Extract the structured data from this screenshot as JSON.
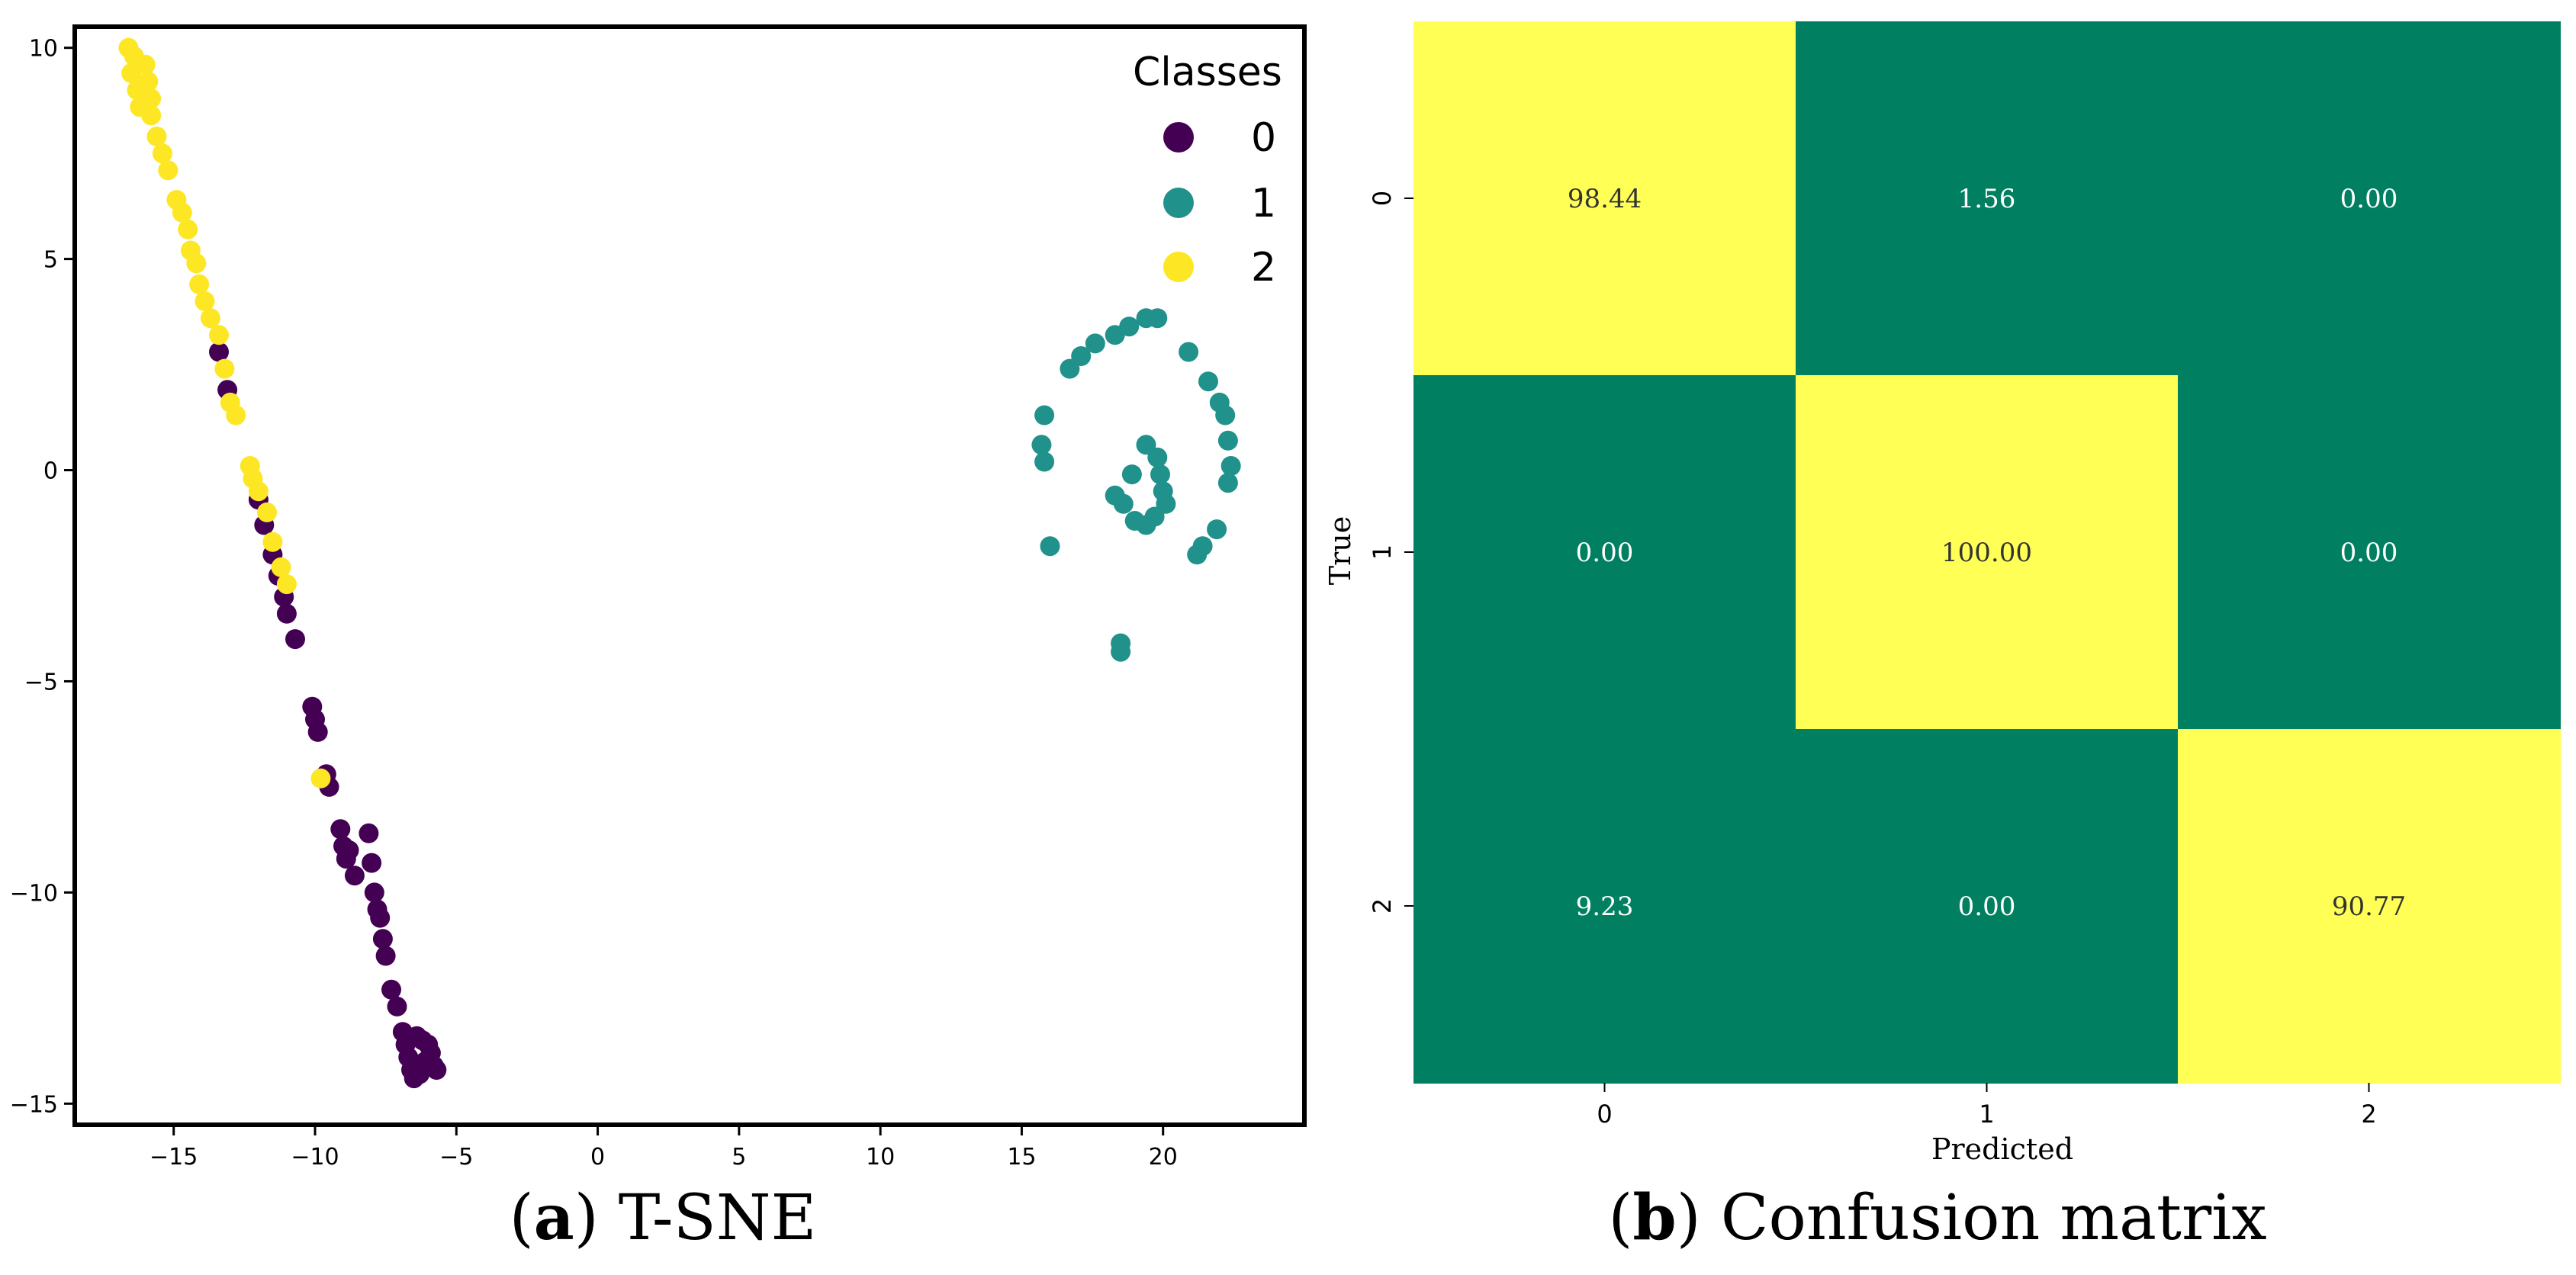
{
  "colors": {
    "class0": "#440154",
    "class1": "#21918c",
    "class2": "#fde725",
    "cm_high": "#ffff55",
    "cm_low": "#008060",
    "cm_text_on_high": "#333333",
    "cm_text_on_low": "#ffffff"
  },
  "captions": {
    "a": {
      "letter": "a",
      "text": " T-SNE"
    },
    "b": {
      "letter": "b",
      "text": " Confusion matrix"
    }
  },
  "chart_data": [
    {
      "type": "scatter",
      "title": "T-SNE",
      "xlim": [
        -18.5,
        25
      ],
      "ylim": [
        -15.5,
        10.5
      ],
      "xticks": [
        -15,
        -10,
        -5,
        0,
        5,
        10,
        15,
        20
      ],
      "yticks": [
        10,
        5,
        0,
        -5,
        -10,
        -15
      ],
      "legend": {
        "title": "Classes",
        "position": "top-right",
        "entries": [
          "0",
          "1",
          "2"
        ]
      },
      "series": [
        {
          "name": "0",
          "points": [
            [
              -13.4,
              2.8
            ],
            [
              -13.1,
              1.9
            ],
            [
              -12.0,
              -0.7
            ],
            [
              -11.8,
              -1.3
            ],
            [
              -11.5,
              -2.0
            ],
            [
              -11.3,
              -2.5
            ],
            [
              -11.1,
              -3.0
            ],
            [
              -11.0,
              -3.4
            ],
            [
              -10.7,
              -4.0
            ],
            [
              -10.1,
              -5.6
            ],
            [
              -10.0,
              -5.9
            ],
            [
              -9.9,
              -6.2
            ],
            [
              -9.6,
              -7.2
            ],
            [
              -9.5,
              -7.5
            ],
            [
              -9.1,
              -8.5
            ],
            [
              -9.0,
              -8.9
            ],
            [
              -8.9,
              -9.2
            ],
            [
              -8.8,
              -9.0
            ],
            [
              -8.6,
              -9.6
            ],
            [
              -8.1,
              -8.6
            ],
            [
              -8.0,
              -9.3
            ],
            [
              -7.9,
              -10.0
            ],
            [
              -7.8,
              -10.4
            ],
            [
              -7.7,
              -10.6
            ],
            [
              -7.6,
              -11.1
            ],
            [
              -7.5,
              -11.5
            ],
            [
              -7.3,
              -12.3
            ],
            [
              -7.1,
              -12.7
            ],
            [
              -6.9,
              -13.3
            ],
            [
              -6.8,
              -13.6
            ],
            [
              -6.7,
              -13.9
            ],
            [
              -6.6,
              -14.2
            ],
            [
              -6.5,
              -14.4
            ],
            [
              -6.3,
              -14.3
            ],
            [
              -6.1,
              -14.0
            ],
            [
              -6.0,
              -13.6
            ],
            [
              -5.9,
              -13.8
            ],
            [
              -5.8,
              -14.1
            ],
            [
              -5.7,
              -14.2
            ],
            [
              -6.4,
              -13.4
            ],
            [
              -6.2,
              -13.5
            ]
          ]
        },
        {
          "name": "1",
          "points": [
            [
              15.8,
              1.3
            ],
            [
              15.7,
              0.6
            ],
            [
              15.8,
              0.2
            ],
            [
              16.0,
              -1.8
            ],
            [
              16.7,
              2.4
            ],
            [
              17.1,
              2.7
            ],
            [
              17.6,
              3.0
            ],
            [
              18.3,
              3.2
            ],
            [
              18.8,
              3.4
            ],
            [
              19.4,
              3.6
            ],
            [
              19.8,
              3.6
            ],
            [
              20.9,
              2.8
            ],
            [
              21.6,
              2.1
            ],
            [
              22.0,
              1.6
            ],
            [
              22.2,
              1.3
            ],
            [
              22.3,
              0.7
            ],
            [
              22.4,
              0.1
            ],
            [
              22.3,
              -0.3
            ],
            [
              21.9,
              -1.4
            ],
            [
              21.4,
              -1.8
            ],
            [
              21.2,
              -2.0
            ],
            [
              19.4,
              0.6
            ],
            [
              19.8,
              0.3
            ],
            [
              19.9,
              -0.1
            ],
            [
              20.0,
              -0.5
            ],
            [
              20.1,
              -0.8
            ],
            [
              19.7,
              -1.1
            ],
            [
              19.4,
              -1.3
            ],
            [
              19.0,
              -1.2
            ],
            [
              18.6,
              -0.8
            ],
            [
              18.3,
              -0.6
            ],
            [
              18.9,
              -0.1
            ],
            [
              18.5,
              -4.1
            ],
            [
              18.5,
              -4.3
            ]
          ]
        },
        {
          "name": "2",
          "points": [
            [
              -16.6,
              10.0
            ],
            [
              -16.4,
              9.8
            ],
            [
              -16.5,
              9.4
            ],
            [
              -16.3,
              9.0
            ],
            [
              -16.2,
              8.6
            ],
            [
              -16.0,
              9.6
            ],
            [
              -15.9,
              9.2
            ],
            [
              -15.8,
              8.8
            ],
            [
              -15.8,
              8.4
            ],
            [
              -15.6,
              7.9
            ],
            [
              -15.4,
              7.5
            ],
            [
              -15.2,
              7.1
            ],
            [
              -14.9,
              6.4
            ],
            [
              -14.7,
              6.1
            ],
            [
              -14.5,
              5.7
            ],
            [
              -14.4,
              5.2
            ],
            [
              -14.2,
              4.9
            ],
            [
              -14.1,
              4.4
            ],
            [
              -13.9,
              4.0
            ],
            [
              -13.7,
              3.6
            ],
            [
              -13.4,
              3.2
            ],
            [
              -13.2,
              2.4
            ],
            [
              -13.0,
              1.6
            ],
            [
              -12.8,
              1.3
            ],
            [
              -12.3,
              0.1
            ],
            [
              -12.2,
              -0.2
            ],
            [
              -12.0,
              -0.5
            ],
            [
              -11.7,
              -1.0
            ],
            [
              -11.5,
              -1.7
            ],
            [
              -11.2,
              -2.3
            ],
            [
              -11.0,
              -2.7
            ],
            [
              -9.8,
              -7.3
            ]
          ]
        }
      ]
    },
    {
      "type": "heatmap",
      "title": "Confusion matrix",
      "xlabel": "Predicted",
      "ylabel": "True",
      "xticklabels": [
        "0",
        "1",
        "2"
      ],
      "yticklabels": [
        "0",
        "1",
        "2"
      ],
      "values": [
        [
          "98.44",
          "1.56",
          "0.00"
        ],
        [
          "0.00",
          "100.00",
          "0.00"
        ],
        [
          "9.23",
          "0.00",
          "90.77"
        ]
      ]
    }
  ]
}
